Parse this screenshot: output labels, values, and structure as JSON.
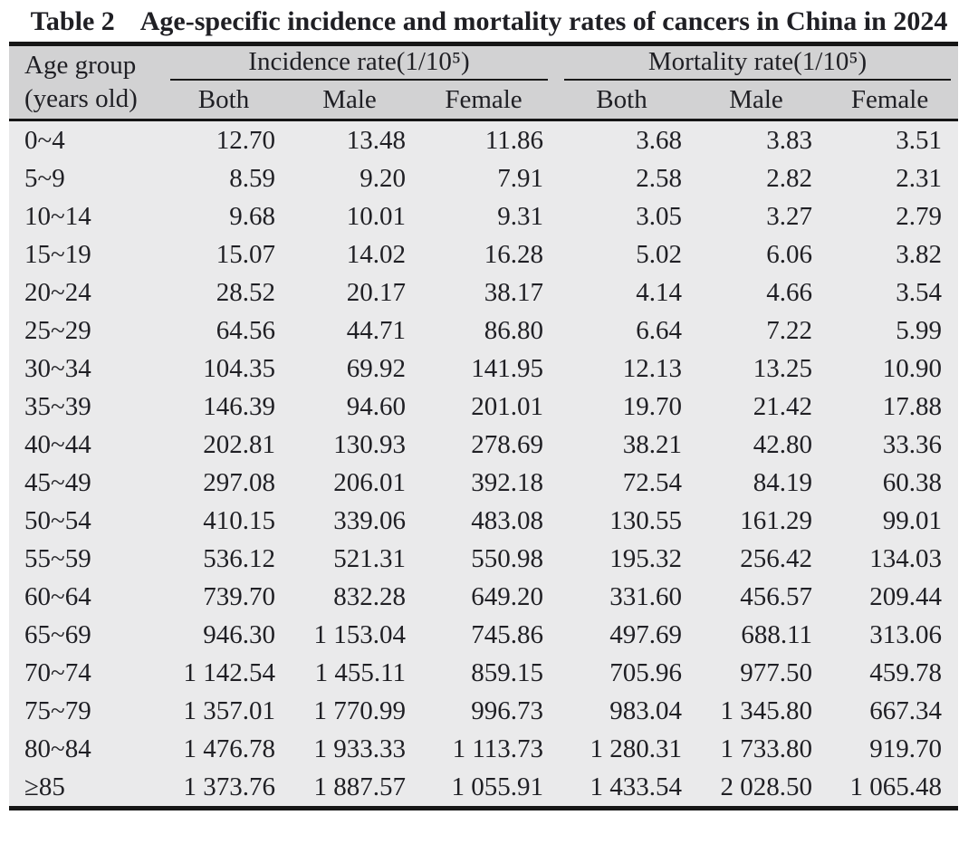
{
  "title": {
    "label": "Table 2",
    "text": "Age-specific incidence and mortality rates of cancers in China in 2024"
  },
  "table": {
    "header": {
      "age_line1": "Age group",
      "age_line2": "(years old)",
      "groups": [
        {
          "label": "Incidence rate(1/10⁵)",
          "columns": [
            "Both",
            "Male",
            "Female"
          ]
        },
        {
          "label": "Mortality rate(1/10⁵)",
          "columns": [
            "Both",
            "Male",
            "Female"
          ]
        }
      ]
    },
    "rows": [
      {
        "age": "0~4",
        "incidence": {
          "both": "12.70",
          "male": "13.48",
          "female": "11.86"
        },
        "mortality": {
          "both": "3.68",
          "male": "3.83",
          "female": "3.51"
        }
      },
      {
        "age": "5~9",
        "incidence": {
          "both": "8.59",
          "male": "9.20",
          "female": "7.91"
        },
        "mortality": {
          "both": "2.58",
          "male": "2.82",
          "female": "2.31"
        }
      },
      {
        "age": "10~14",
        "incidence": {
          "both": "9.68",
          "male": "10.01",
          "female": "9.31"
        },
        "mortality": {
          "both": "3.05",
          "male": "3.27",
          "female": "2.79"
        }
      },
      {
        "age": "15~19",
        "incidence": {
          "both": "15.07",
          "male": "14.02",
          "female": "16.28"
        },
        "mortality": {
          "both": "5.02",
          "male": "6.06",
          "female": "3.82"
        }
      },
      {
        "age": "20~24",
        "incidence": {
          "both": "28.52",
          "male": "20.17",
          "female": "38.17"
        },
        "mortality": {
          "both": "4.14",
          "male": "4.66",
          "female": "3.54"
        }
      },
      {
        "age": "25~29",
        "incidence": {
          "both": "64.56",
          "male": "44.71",
          "female": "86.80"
        },
        "mortality": {
          "both": "6.64",
          "male": "7.22",
          "female": "5.99"
        }
      },
      {
        "age": "30~34",
        "incidence": {
          "both": "104.35",
          "male": "69.92",
          "female": "141.95"
        },
        "mortality": {
          "both": "12.13",
          "male": "13.25",
          "female": "10.90"
        }
      },
      {
        "age": "35~39",
        "incidence": {
          "both": "146.39",
          "male": "94.60",
          "female": "201.01"
        },
        "mortality": {
          "both": "19.70",
          "male": "21.42",
          "female": "17.88"
        }
      },
      {
        "age": "40~44",
        "incidence": {
          "both": "202.81",
          "male": "130.93",
          "female": "278.69"
        },
        "mortality": {
          "both": "38.21",
          "male": "42.80",
          "female": "33.36"
        }
      },
      {
        "age": "45~49",
        "incidence": {
          "both": "297.08",
          "male": "206.01",
          "female": "392.18"
        },
        "mortality": {
          "both": "72.54",
          "male": "84.19",
          "female": "60.38"
        }
      },
      {
        "age": "50~54",
        "incidence": {
          "both": "410.15",
          "male": "339.06",
          "female": "483.08"
        },
        "mortality": {
          "both": "130.55",
          "male": "161.29",
          "female": "99.01"
        }
      },
      {
        "age": "55~59",
        "incidence": {
          "both": "536.12",
          "male": "521.31",
          "female": "550.98"
        },
        "mortality": {
          "both": "195.32",
          "male": "256.42",
          "female": "134.03"
        }
      },
      {
        "age": "60~64",
        "incidence": {
          "both": "739.70",
          "male": "832.28",
          "female": "649.20"
        },
        "mortality": {
          "both": "331.60",
          "male": "456.57",
          "female": "209.44"
        }
      },
      {
        "age": "65~69",
        "incidence": {
          "both": "946.30",
          "male": "1 153.04",
          "female": "745.86"
        },
        "mortality": {
          "both": "497.69",
          "male": "688.11",
          "female": "313.06"
        }
      },
      {
        "age": "70~74",
        "incidence": {
          "both": "1 142.54",
          "male": "1 455.11",
          "female": "859.15"
        },
        "mortality": {
          "both": "705.96",
          "male": "977.50",
          "female": "459.78"
        }
      },
      {
        "age": "75~79",
        "incidence": {
          "both": "1 357.01",
          "male": "1 770.99",
          "female": "996.73"
        },
        "mortality": {
          "both": "983.04",
          "male": "1 345.80",
          "female": "667.34"
        }
      },
      {
        "age": "80~84",
        "incidence": {
          "both": "1 476.78",
          "male": "1 933.33",
          "female": "1 113.73"
        },
        "mortality": {
          "both": "1 280.31",
          "male": "1 733.80",
          "female": "919.70"
        }
      },
      {
        "age": "≥85",
        "incidence": {
          "both": "1 373.76",
          "male": "1 887.57",
          "female": "1 055.91"
        },
        "mortality": {
          "both": "1 433.54",
          "male": "2 028.50",
          "female": "1 065.48"
        }
      }
    ]
  },
  "colors": {
    "header_band": "#d2d2d3",
    "body_band": "#eaeaeb",
    "rule": "#161616",
    "text": "#1f1f24",
    "page_background": "#ffffff"
  }
}
